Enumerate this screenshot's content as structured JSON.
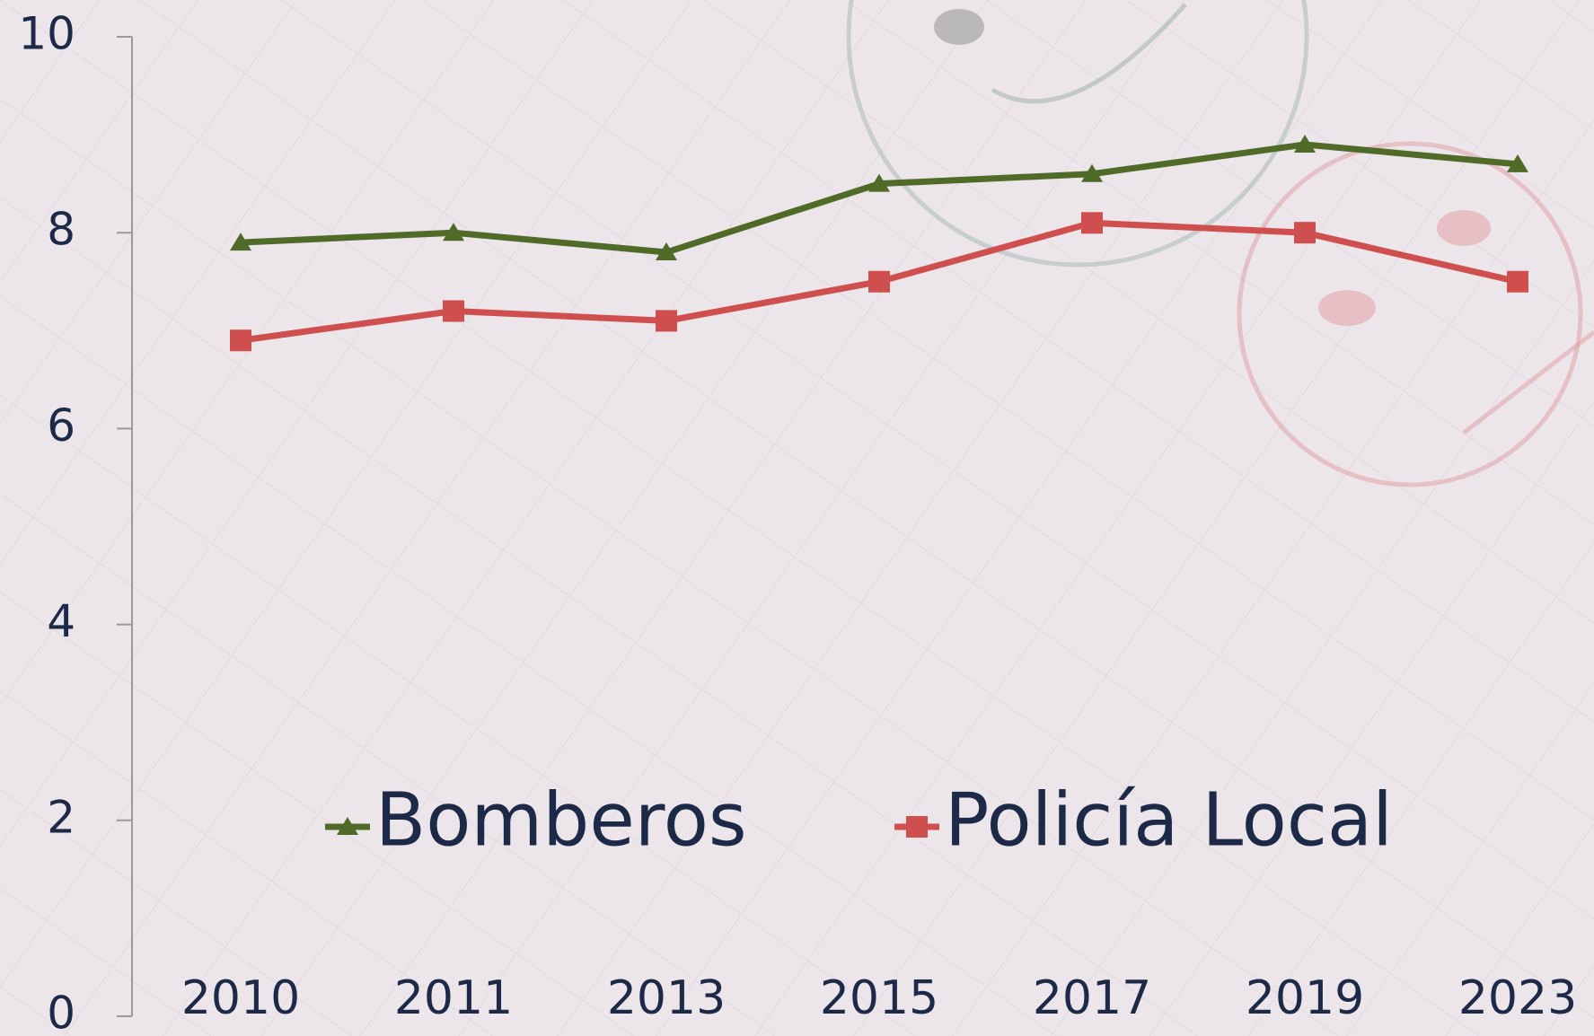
{
  "chart_data": {
    "type": "line",
    "categories": [
      "2010",
      "2011",
      "2013",
      "2015",
      "2017",
      "2019",
      "2023"
    ],
    "series": [
      {
        "name": "Bomberos",
        "color": "#4f6b27",
        "marker": "triangle",
        "values": [
          7.9,
          8.0,
          7.8,
          8.5,
          8.6,
          8.9,
          8.7
        ]
      },
      {
        "name": "Policía Local",
        "color": "#cf4f4f",
        "marker": "square",
        "values": [
          6.9,
          7.2,
          7.1,
          7.5,
          8.1,
          8.0,
          7.5
        ]
      }
    ],
    "ylim": [
      0,
      10
    ],
    "yticks": [
      0,
      2,
      4,
      6,
      8,
      10
    ],
    "grid": false
  }
}
